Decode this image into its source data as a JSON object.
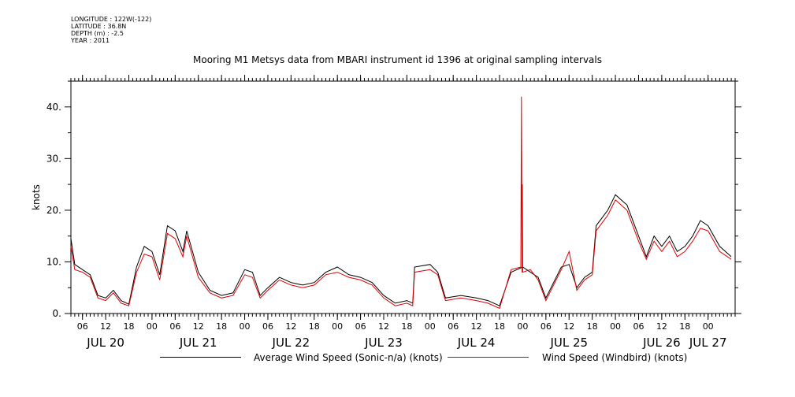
{
  "header": {
    "meta": [
      "LONGITUDE : 122W(-122)",
      "LATITUDE : 36.8N",
      "DEPTH (m) : -2.5",
      "YEAR : 2011"
    ],
    "title": "Mooring M1 Metsys data from MBARI instrument id 1396 at original sampling intervals"
  },
  "colors": {
    "series1": "#000000",
    "series2": "#e00000"
  },
  "chart_data": {
    "type": "line",
    "title": "Mooring M1 Metsys data from MBARI instrument id 1396 at original sampling intervals",
    "ylabel": "knots",
    "xlabel": "",
    "xlim": [
      "2011-07-20T03:00",
      "2011-07-27T07:00"
    ],
    "ylim": [
      0,
      45
    ],
    "yticks": [
      0,
      10,
      20,
      30,
      40
    ],
    "ytick_labels": [
      "0.",
      "10.",
      "20.",
      "30.",
      "40."
    ],
    "hour_ticks": [
      {
        "t": "2011-07-20T06:00",
        "label": "06"
      },
      {
        "t": "2011-07-20T12:00",
        "label": "12"
      },
      {
        "t": "2011-07-20T18:00",
        "label": "18"
      },
      {
        "t": "2011-07-21T00:00",
        "label": "00"
      },
      {
        "t": "2011-07-21T06:00",
        "label": "06"
      },
      {
        "t": "2011-07-21T12:00",
        "label": "12"
      },
      {
        "t": "2011-07-21T18:00",
        "label": "18"
      },
      {
        "t": "2011-07-22T00:00",
        "label": "00"
      },
      {
        "t": "2011-07-22T06:00",
        "label": "06"
      },
      {
        "t": "2011-07-22T12:00",
        "label": "12"
      },
      {
        "t": "2011-07-22T18:00",
        "label": "18"
      },
      {
        "t": "2011-07-23T00:00",
        "label": "00"
      },
      {
        "t": "2011-07-23T06:00",
        "label": "06"
      },
      {
        "t": "2011-07-23T12:00",
        "label": "12"
      },
      {
        "t": "2011-07-23T18:00",
        "label": "18"
      },
      {
        "t": "2011-07-24T00:00",
        "label": "00"
      },
      {
        "t": "2011-07-24T06:00",
        "label": "06"
      },
      {
        "t": "2011-07-24T12:00",
        "label": "12"
      },
      {
        "t": "2011-07-24T18:00",
        "label": "18"
      },
      {
        "t": "2011-07-25T00:00",
        "label": "00"
      },
      {
        "t": "2011-07-25T06:00",
        "label": "06"
      },
      {
        "t": "2011-07-25T12:00",
        "label": "12"
      },
      {
        "t": "2011-07-25T18:00",
        "label": "18"
      },
      {
        "t": "2011-07-26T00:00",
        "label": "00"
      },
      {
        "t": "2011-07-26T06:00",
        "label": "06"
      },
      {
        "t": "2011-07-26T12:00",
        "label": "12"
      },
      {
        "t": "2011-07-26T18:00",
        "label": "18"
      },
      {
        "t": "2011-07-27T00:00",
        "label": "00"
      }
    ],
    "day_labels": [
      {
        "t": "2011-07-20T12:00",
        "label": "JUL 20"
      },
      {
        "t": "2011-07-21T12:00",
        "label": "JUL 21"
      },
      {
        "t": "2011-07-22T12:00",
        "label": "JUL 22"
      },
      {
        "t": "2011-07-23T12:00",
        "label": "JUL 23"
      },
      {
        "t": "2011-07-24T12:00",
        "label": "JUL 24"
      },
      {
        "t": "2011-07-25T12:00",
        "label": "JUL 25"
      },
      {
        "t": "2011-07-26T12:00",
        "label": "JUL 26"
      },
      {
        "t": "2011-07-27T00:00",
        "label": "JUL 27"
      }
    ],
    "series": [
      {
        "name": "Average Wind Speed (Sonic-n/a) (knots)",
        "color": "#000000",
        "points": [
          [
            "2011-07-20T03:00",
            14.5
          ],
          [
            "2011-07-20T04:00",
            9.5
          ],
          [
            "2011-07-20T06:00",
            8.5
          ],
          [
            "2011-07-20T08:00",
            7.5
          ],
          [
            "2011-07-20T10:00",
            3.5
          ],
          [
            "2011-07-20T12:00",
            3.0
          ],
          [
            "2011-07-20T14:00",
            4.5
          ],
          [
            "2011-07-20T16:00",
            2.5
          ],
          [
            "2011-07-20T18:00",
            1.8
          ],
          [
            "2011-07-20T20:00",
            9.0
          ],
          [
            "2011-07-20T22:00",
            13.0
          ],
          [
            "2011-07-21T00:00",
            12.0
          ],
          [
            "2011-07-21T02:00",
            7.5
          ],
          [
            "2011-07-21T04:00",
            17.0
          ],
          [
            "2011-07-21T06:00",
            16.0
          ],
          [
            "2011-07-21T08:00",
            12.0
          ],
          [
            "2011-07-21T09:00",
            16.0
          ],
          [
            "2011-07-21T12:00",
            8.0
          ],
          [
            "2011-07-21T15:00",
            4.5
          ],
          [
            "2011-07-21T18:00",
            3.5
          ],
          [
            "2011-07-21T21:00",
            4.0
          ],
          [
            "2011-07-22T00:00",
            8.5
          ],
          [
            "2011-07-22T02:00",
            8.0
          ],
          [
            "2011-07-22T04:00",
            3.5
          ],
          [
            "2011-07-22T06:00",
            5.0
          ],
          [
            "2011-07-22T09:00",
            7.0
          ],
          [
            "2011-07-22T12:00",
            6.0
          ],
          [
            "2011-07-22T15:00",
            5.5
          ],
          [
            "2011-07-22T18:00",
            6.0
          ],
          [
            "2011-07-22T21:00",
            8.0
          ],
          [
            "2011-07-23T00:00",
            9.0
          ],
          [
            "2011-07-23T03:00",
            7.5
          ],
          [
            "2011-07-23T06:00",
            7.0
          ],
          [
            "2011-07-23T09:00",
            6.0
          ],
          [
            "2011-07-23T12:00",
            3.5
          ],
          [
            "2011-07-23T15:00",
            2.0
          ],
          [
            "2011-07-23T18:00",
            2.5
          ],
          [
            "2011-07-23T19:30",
            2.0
          ],
          [
            "2011-07-23T20:00",
            9.0
          ],
          [
            "2011-07-24T00:00",
            9.5
          ],
          [
            "2011-07-24T02:00",
            8.0
          ],
          [
            "2011-07-24T04:00",
            3.0
          ],
          [
            "2011-07-24T08:00",
            3.5
          ],
          [
            "2011-07-24T12:00",
            3.0
          ],
          [
            "2011-07-24T15:00",
            2.5
          ],
          [
            "2011-07-24T18:00",
            1.5
          ],
          [
            "2011-07-24T21:00",
            8.0
          ],
          [
            "2011-07-25T00:00",
            9.0
          ],
          [
            "2011-07-25T02:00",
            8.0
          ],
          [
            "2011-07-25T04:00",
            7.0
          ],
          [
            "2011-07-25T06:00",
            3.0
          ],
          [
            "2011-07-25T08:00",
            6.0
          ],
          [
            "2011-07-25T10:00",
            9.0
          ],
          [
            "2011-07-25T12:00",
            9.5
          ],
          [
            "2011-07-25T14:00",
            5.0
          ],
          [
            "2011-07-25T16:00",
            7.0
          ],
          [
            "2011-07-25T18:00",
            8.0
          ],
          [
            "2011-07-25T19:00",
            17.0
          ],
          [
            "2011-07-25T22:00",
            20.0
          ],
          [
            "2011-07-26T00:00",
            23.0
          ],
          [
            "2011-07-26T03:00",
            21.0
          ],
          [
            "2011-07-26T06:00",
            15.0
          ],
          [
            "2011-07-26T08:00",
            11.0
          ],
          [
            "2011-07-26T10:00",
            15.0
          ],
          [
            "2011-07-26T12:00",
            13.0
          ],
          [
            "2011-07-26T14:00",
            15.0
          ],
          [
            "2011-07-26T16:00",
            12.0
          ],
          [
            "2011-07-26T18:00",
            13.0
          ],
          [
            "2011-07-26T20:00",
            15.0
          ],
          [
            "2011-07-26T22:00",
            18.0
          ],
          [
            "2011-07-27T00:00",
            17.0
          ],
          [
            "2011-07-27T03:00",
            13.0
          ],
          [
            "2011-07-27T06:00",
            11.0
          ]
        ]
      },
      {
        "name": "Wind Speed (Windbird) (knots)",
        "color": "#e00000",
        "points": [
          [
            "2011-07-20T03:00",
            13.0
          ],
          [
            "2011-07-20T04:00",
            8.5
          ],
          [
            "2011-07-20T06:00",
            8.0
          ],
          [
            "2011-07-20T08:00",
            7.0
          ],
          [
            "2011-07-20T10:00",
            3.0
          ],
          [
            "2011-07-20T12:00",
            2.5
          ],
          [
            "2011-07-20T14:00",
            4.0
          ],
          [
            "2011-07-20T16:00",
            2.0
          ],
          [
            "2011-07-20T18:00",
            1.5
          ],
          [
            "2011-07-20T20:00",
            8.0
          ],
          [
            "2011-07-20T22:00",
            11.5
          ],
          [
            "2011-07-21T00:00",
            11.0
          ],
          [
            "2011-07-21T02:00",
            6.5
          ],
          [
            "2011-07-21T04:00",
            15.5
          ],
          [
            "2011-07-21T06:00",
            14.5
          ],
          [
            "2011-07-21T08:00",
            11.0
          ],
          [
            "2011-07-21T09:00",
            15.0
          ],
          [
            "2011-07-21T12:00",
            7.0
          ],
          [
            "2011-07-21T15:00",
            4.0
          ],
          [
            "2011-07-21T18:00",
            3.0
          ],
          [
            "2011-07-21T21:00",
            3.5
          ],
          [
            "2011-07-22T00:00",
            7.5
          ],
          [
            "2011-07-22T02:00",
            7.0
          ],
          [
            "2011-07-22T04:00",
            3.0
          ],
          [
            "2011-07-22T06:00",
            4.5
          ],
          [
            "2011-07-22T09:00",
            6.5
          ],
          [
            "2011-07-22T12:00",
            5.5
          ],
          [
            "2011-07-22T15:00",
            5.0
          ],
          [
            "2011-07-22T18:00",
            5.5
          ],
          [
            "2011-07-22T21:00",
            7.5
          ],
          [
            "2011-07-23T00:00",
            8.0
          ],
          [
            "2011-07-23T03:00",
            7.0
          ],
          [
            "2011-07-23T06:00",
            6.5
          ],
          [
            "2011-07-23T09:00",
            5.5
          ],
          [
            "2011-07-23T12:00",
            3.0
          ],
          [
            "2011-07-23T15:00",
            1.5
          ],
          [
            "2011-07-23T18:00",
            2.0
          ],
          [
            "2011-07-23T19:30",
            1.5
          ],
          [
            "2011-07-23T20:00",
            8.0
          ],
          [
            "2011-07-24T00:00",
            8.5
          ],
          [
            "2011-07-24T02:00",
            7.5
          ],
          [
            "2011-07-24T04:00",
            2.5
          ],
          [
            "2011-07-24T08:00",
            3.0
          ],
          [
            "2011-07-24T12:00",
            2.5
          ],
          [
            "2011-07-24T15:00",
            2.0
          ],
          [
            "2011-07-24T18:00",
            1.0
          ],
          [
            "2011-07-24T21:00",
            8.5
          ],
          [
            "2011-07-24T23:30",
            9.0
          ],
          [
            "2011-07-24T23:40",
            42.0
          ],
          [
            "2011-07-24T23:50",
            8.0
          ],
          [
            "2011-07-24T23:55",
            25.0
          ],
          [
            "2011-07-25T00:00",
            8.0
          ],
          [
            "2011-07-25T02:00",
            8.5
          ],
          [
            "2011-07-25T04:00",
            6.5
          ],
          [
            "2011-07-25T06:00",
            2.5
          ],
          [
            "2011-07-25T08:00",
            5.5
          ],
          [
            "2011-07-25T10:00",
            8.5
          ],
          [
            "2011-07-25T12:00",
            12.0
          ],
          [
            "2011-07-25T14:00",
            4.5
          ],
          [
            "2011-07-25T16:00",
            6.5
          ],
          [
            "2011-07-25T18:00",
            7.5
          ],
          [
            "2011-07-25T19:00",
            16.0
          ],
          [
            "2011-07-25T22:00",
            19.0
          ],
          [
            "2011-07-26T00:00",
            22.0
          ],
          [
            "2011-07-26T03:00",
            20.0
          ],
          [
            "2011-07-26T06:00",
            14.0
          ],
          [
            "2011-07-26T08:00",
            10.5
          ],
          [
            "2011-07-26T10:00",
            14.0
          ],
          [
            "2011-07-26T12:00",
            12.0
          ],
          [
            "2011-07-26T14:00",
            14.0
          ],
          [
            "2011-07-26T16:00",
            11.0
          ],
          [
            "2011-07-26T18:00",
            12.0
          ],
          [
            "2011-07-26T20:00",
            14.0
          ],
          [
            "2011-07-26T22:00",
            16.5
          ],
          [
            "2011-07-27T00:00",
            16.0
          ],
          [
            "2011-07-27T03:00",
            12.0
          ],
          [
            "2011-07-27T06:00",
            10.5
          ]
        ]
      }
    ]
  }
}
